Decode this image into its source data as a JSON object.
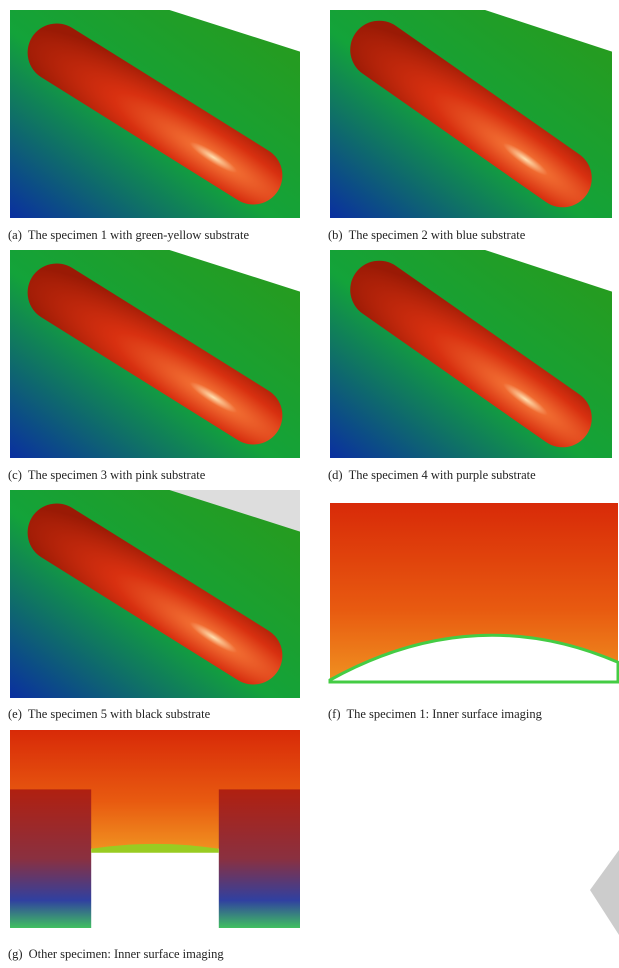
{
  "panels": [
    {
      "label": "(a)",
      "caption": "The specimen 1 with green-yellow substrate"
    },
    {
      "label": "(b)",
      "caption": "The specimen 2 with blue substrate"
    },
    {
      "label": "(c)",
      "caption": "The specimen 3 with pink substrate"
    },
    {
      "label": "(d)",
      "caption": "The specimen 4 with purple substrate"
    },
    {
      "label": "(e)",
      "caption": "The specimen 5 with black substrate"
    },
    {
      "label": "(f)",
      "caption": "The specimen 1: Inner surface imaging"
    },
    {
      "label": "(g)",
      "caption": "Other specimen: Inner surface imaging"
    }
  ]
}
